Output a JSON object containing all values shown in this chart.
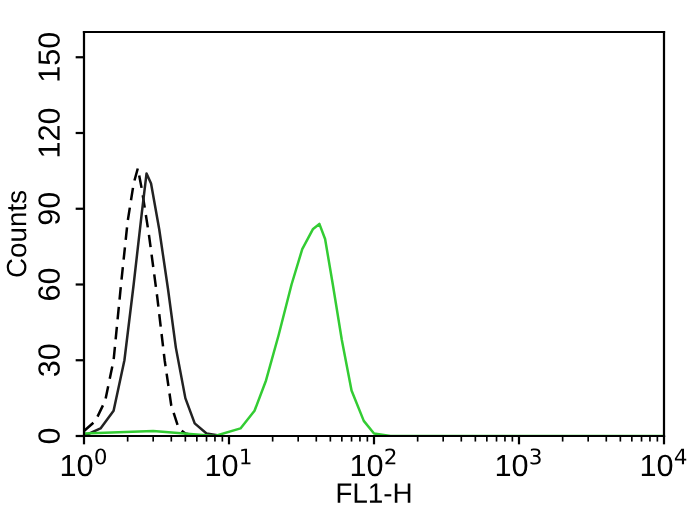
{
  "chart_data": {
    "type": "line",
    "xlabel": "FL1-H",
    "ylabel": "Counts",
    "log": "x",
    "grid": false,
    "xlim": [
      1,
      10000
    ],
    "ylim": [
      0,
      160
    ],
    "xticks": [
      {
        "value": 1,
        "label": "10$^{0}$"
      },
      {
        "value": 10,
        "label": "10$^{1}$"
      },
      {
        "value": 100,
        "label": "10$^{2}$"
      },
      {
        "value": 1000,
        "label": "10$^{3}$"
      },
      {
        "value": 10000,
        "label": "10$^{4}$"
      }
    ],
    "yticks": [
      0,
      30,
      60,
      90,
      120,
      150
    ],
    "series": [
      {
        "color": "#000000",
        "line_style": "dashed",
        "x": [
          1,
          1.2,
          1.4,
          1.6,
          1.8,
          2.0,
          2.2,
          2.35,
          2.5,
          2.8,
          3.2,
          3.6,
          4.0,
          4.5,
          5,
          6
        ],
        "values": [
          2,
          6,
          14,
          30,
          60,
          85,
          100,
          106,
          98,
          80,
          55,
          30,
          12,
          3,
          1,
          0
        ]
      },
      {
        "color": "#222222",
        "line_style": "solid",
        "x": [
          1,
          1.3,
          1.6,
          1.9,
          2.2,
          2.5,
          2.7,
          2.9,
          3.3,
          3.8,
          4.3,
          5,
          5.8,
          7,
          9
        ],
        "values": [
          0,
          3,
          10,
          30,
          60,
          88,
          104,
          100,
          82,
          58,
          35,
          15,
          5,
          1,
          0
        ]
      },
      {
        "color": "#33cc33",
        "line_style": "solid",
        "x": [
          1,
          3,
          8,
          12,
          15,
          18,
          22,
          27,
          32,
          38,
          42,
          46,
          52,
          60,
          70,
          85,
          100,
          130,
          10000
        ],
        "values": [
          1,
          2,
          0,
          3,
          10,
          22,
          40,
          60,
          74,
          82,
          84,
          78,
          60,
          38,
          18,
          6,
          1,
          0,
          0
        ]
      }
    ]
  }
}
